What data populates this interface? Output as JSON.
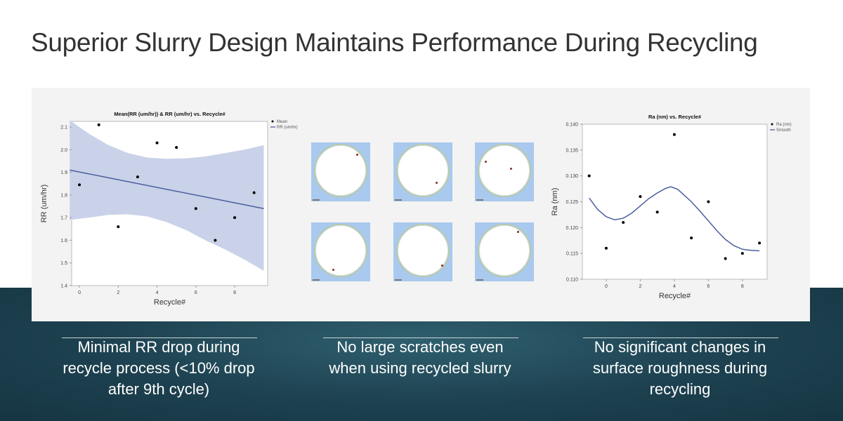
{
  "title": "Superior Slurry Design Maintains Performance During Recycling",
  "captions": [
    "Minimal RR drop during recycle process (<10% drop after 9th cycle)",
    "No large scratches even when using recycled slurry",
    "No significant changes in surface roughness during recycling"
  ],
  "colors": {
    "band": "#c9d2e8",
    "line": "#4a5f9e",
    "points": "#000000",
    "bottom_bg": "#1d4150"
  },
  "wafer_images": 6,
  "chart_data": [
    {
      "type": "scatter",
      "title": "Mean(RR (um/hr)) & RR (um/hr) vs. Recycle#",
      "xlabel": "Recycle#",
      "ylabel": "RR (um/hr)",
      "xlim": [
        -0.4,
        9.7
      ],
      "ylim": [
        1.4,
        2.125
      ],
      "xticks": [
        0,
        2,
        4,
        6,
        8
      ],
      "yticks": [
        1.4,
        1.5,
        1.6,
        1.7,
        1.8,
        1.9,
        2.0,
        2.1
      ],
      "ytick_labels": [
        "1.4",
        "1.5",
        "1.6",
        "1.7",
        "1.8",
        "1.9",
        "2.0",
        "2.1"
      ],
      "legend": [
        "Mean",
        "RR (um/hr)"
      ],
      "legend_placement": "top-right outside",
      "points": {
        "x": [
          0,
          1,
          2,
          3,
          4,
          5,
          6,
          7,
          8,
          9
        ],
        "y": [
          1.845,
          2.11,
          1.66,
          1.88,
          2.03,
          2.01,
          1.74,
          1.6,
          1.7,
          1.81
        ]
      },
      "fit_line": {
        "x": [
          -0.5,
          9.5
        ],
        "y": [
          1.91,
          1.74
        ]
      },
      "confidence_band": {
        "x": [
          -0.5,
          0.5,
          1.5,
          2.5,
          3.5,
          4.5,
          5.5,
          6.5,
          7.5,
          8.5,
          9.5
        ],
        "upper": [
          2.13,
          2.07,
          2.02,
          1.985,
          1.965,
          1.96,
          1.962,
          1.97,
          1.985,
          2.0,
          2.02
        ],
        "lower": [
          1.69,
          1.7,
          1.712,
          1.715,
          1.705,
          1.68,
          1.645,
          1.6,
          1.56,
          1.515,
          1.465
        ]
      }
    },
    {
      "type": "scatter",
      "title": "Ra (nm) vs. Recycle#",
      "xlabel": "Recycle#",
      "ylabel": "Ra (nm)",
      "xlim": [
        -1.4,
        9.45
      ],
      "ylim": [
        0.11,
        0.14
      ],
      "xticks": [
        0,
        2,
        4,
        6,
        8
      ],
      "yticks": [
        0.11,
        0.115,
        0.12,
        0.125,
        0.13,
        0.135,
        0.14
      ],
      "ytick_labels": [
        "0.110",
        "0.115",
        "0.120",
        "0.125",
        "0.130",
        "0.135",
        "0.140"
      ],
      "legend": [
        "Ra (nm)",
        "Smooth"
      ],
      "legend_placement": "top-right outside",
      "points": {
        "x": [
          -1,
          0,
          1,
          2,
          3,
          4,
          5,
          6,
          7,
          8,
          9
        ],
        "y": [
          0.13,
          0.116,
          0.121,
          0.126,
          0.123,
          0.138,
          0.118,
          0.125,
          0.114,
          0.115,
          0.117
        ]
      },
      "smooth": {
        "x": [
          -1,
          -0.5,
          0,
          0.5,
          1,
          1.5,
          2,
          2.5,
          3,
          3.5,
          3.8,
          4.2,
          4.5,
          5,
          5.5,
          6,
          6.5,
          7,
          7.5,
          8,
          8.5,
          9
        ],
        "y": [
          0.1257,
          0.1235,
          0.1221,
          0.1215,
          0.1218,
          0.1228,
          0.1242,
          0.1256,
          0.1267,
          0.1276,
          0.1279,
          0.1274,
          0.1265,
          0.125,
          0.1232,
          0.1213,
          0.1194,
          0.1177,
          0.1165,
          0.1158,
          0.1156,
          0.1155
        ]
      }
    }
  ]
}
